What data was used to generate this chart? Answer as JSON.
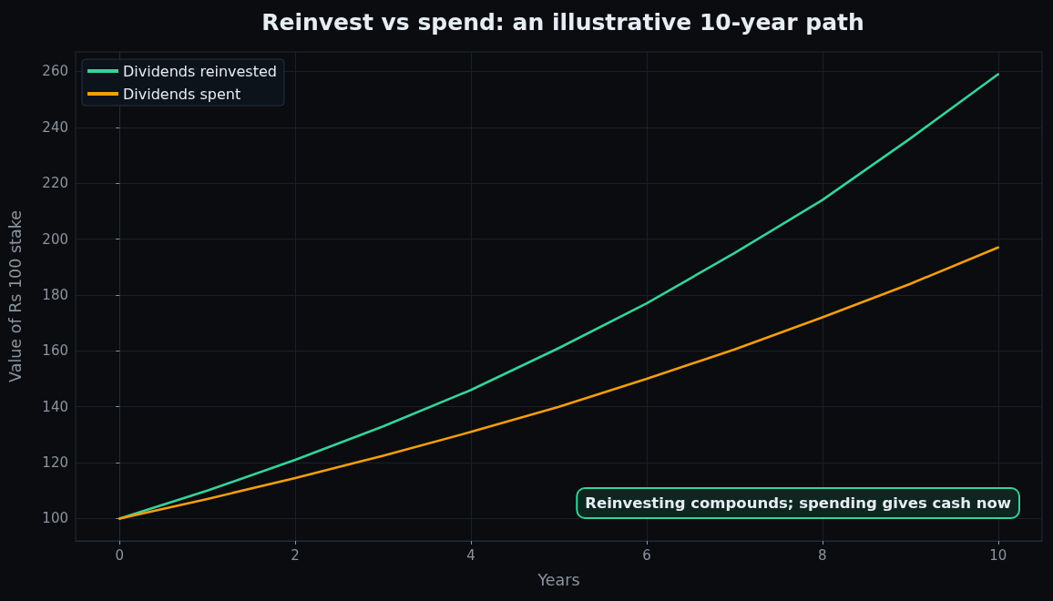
{
  "chart_data": {
    "type": "line",
    "title": "Reinvest vs spend: an illustrative 10-year path",
    "xlabel": "Years",
    "ylabel": "Value of Rs 100 stake",
    "x": [
      0,
      1,
      2,
      3,
      4,
      5,
      6,
      7,
      8,
      9,
      10
    ],
    "series": [
      {
        "name": "Dividends reinvested",
        "color": "#34d399",
        "values": [
          100,
          110,
          121,
          133,
          146,
          161,
          177,
          195,
          214,
          236,
          259
        ]
      },
      {
        "name": "Dividends spent",
        "color": "#f59e0b",
        "values": [
          100,
          107,
          114.5,
          122.5,
          131,
          140,
          150,
          160.5,
          172,
          184,
          197
        ]
      }
    ],
    "xlim": [
      -0.5,
      10.5
    ],
    "xticks": [
      0,
      2,
      4,
      6,
      8,
      10
    ],
    "ylim": [
      92,
      267
    ],
    "yticks": [
      100,
      120,
      140,
      160,
      180,
      200,
      220,
      240,
      260
    ],
    "annotations": [
      "Reinvesting compounds; spending gives cash now"
    ],
    "grid": true,
    "legend": "top left",
    "marker": "none",
    "line_style": "solid"
  }
}
